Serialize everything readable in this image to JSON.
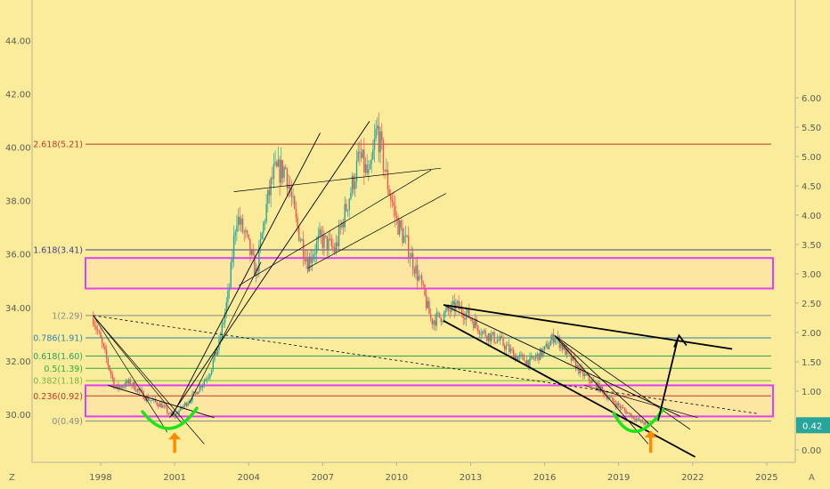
{
  "chart_data": {
    "type": "line",
    "title": "",
    "x_ticks": [
      "1998",
      "2001",
      "2004",
      "2007",
      "2010",
      "2013",
      "2016",
      "2019",
      "2022",
      "2025"
    ],
    "left_axis": {
      "ticks": [
        "30.00",
        "32.00",
        "34.00",
        "36.00",
        "38.00",
        "40.00",
        "42.00",
        "44.00"
      ]
    },
    "right_axis": {
      "ticks": [
        "0.00",
        "0.50",
        "1.00",
        "1.50",
        "2.00",
        "2.50",
        "3.00",
        "3.50",
        "4.00",
        "4.50",
        "5.00",
        "5.50",
        "6.00"
      ],
      "last_price": "0.42"
    },
    "fib_levels": [
      {
        "label": "2.618(5.21)",
        "value": 5.21,
        "color": "#c0392b"
      },
      {
        "label": "1.618(3.41)",
        "value": 3.41,
        "color": "#3b3f8f"
      },
      {
        "label": "1(2.29)",
        "value": 2.29,
        "color": "#8a8a8a"
      },
      {
        "label": "0.786(1.91)",
        "value": 1.91,
        "color": "#2a86b5"
      },
      {
        "label": "0.618(1.60)",
        "value": 1.6,
        "color": "#25a15a"
      },
      {
        "label": "0.5(1.39)",
        "value": 1.39,
        "color": "#27b02f"
      },
      {
        "label": "0.382(1.18)",
        "value": 1.18,
        "color": "#7cb342"
      },
      {
        "label": "0.236(0.92)",
        "value": 0.92,
        "color": "#c0392b"
      },
      {
        "label": "0(0.49)",
        "value": 0.49,
        "color": "#8a8a8a"
      }
    ],
    "price_series": [
      {
        "x": 1997.7,
        "y": 2.25
      },
      {
        "x": 1998.2,
        "y": 1.6
      },
      {
        "x": 1998.6,
        "y": 1.05
      },
      {
        "x": 1999.2,
        "y": 1.15
      },
      {
        "x": 1999.8,
        "y": 0.9
      },
      {
        "x": 2000.5,
        "y": 0.75
      },
      {
        "x": 2000.9,
        "y": 0.55
      },
      {
        "x": 2001.3,
        "y": 0.72
      },
      {
        "x": 2001.8,
        "y": 0.95
      },
      {
        "x": 2002.4,
        "y": 1.3
      },
      {
        "x": 2002.8,
        "y": 1.8
      },
      {
        "x": 2003.2,
        "y": 2.7
      },
      {
        "x": 2003.5,
        "y": 4.0
      },
      {
        "x": 2003.9,
        "y": 3.6
      },
      {
        "x": 2004.3,
        "y": 3.0
      },
      {
        "x": 2004.7,
        "y": 4.1
      },
      {
        "x": 2005.0,
        "y": 4.7
      },
      {
        "x": 2005.5,
        "y": 4.8
      },
      {
        "x": 2005.9,
        "y": 3.9
      },
      {
        "x": 2006.4,
        "y": 3.2
      },
      {
        "x": 2006.9,
        "y": 3.6
      },
      {
        "x": 2007.5,
        "y": 3.4
      },
      {
        "x": 2008.0,
        "y": 4.2
      },
      {
        "x": 2008.5,
        "y": 5.0
      },
      {
        "x": 2008.9,
        "y": 4.6
      },
      {
        "x": 2009.2,
        "y": 5.5
      },
      {
        "x": 2009.6,
        "y": 4.6
      },
      {
        "x": 2010.0,
        "y": 3.9
      },
      {
        "x": 2010.5,
        "y": 3.4
      },
      {
        "x": 2011.0,
        "y": 2.8
      },
      {
        "x": 2011.4,
        "y": 2.2
      },
      {
        "x": 2011.9,
        "y": 2.3
      },
      {
        "x": 2012.4,
        "y": 2.45
      },
      {
        "x": 2012.9,
        "y": 2.3
      },
      {
        "x": 2013.5,
        "y": 2.0
      },
      {
        "x": 2014.2,
        "y": 1.85
      },
      {
        "x": 2014.8,
        "y": 1.6
      },
      {
        "x": 2015.4,
        "y": 1.5
      },
      {
        "x": 2016.0,
        "y": 1.7
      },
      {
        "x": 2016.4,
        "y": 1.95
      },
      {
        "x": 2016.9,
        "y": 1.65
      },
      {
        "x": 2017.5,
        "y": 1.3
      },
      {
        "x": 2018.1,
        "y": 1.1
      },
      {
        "x": 2018.7,
        "y": 0.85
      },
      {
        "x": 2019.3,
        "y": 0.65
      },
      {
        "x": 2019.8,
        "y": 0.5
      },
      {
        "x": 2020.2,
        "y": 0.42
      }
    ],
    "zones": [
      {
        "from": 2.75,
        "to": 3.27
      },
      {
        "from": 0.57,
        "to": 1.1
      }
    ],
    "colors": {
      "background": "#fbec9b",
      "candle_up": "#26a69a",
      "candle_down": "#ef5350",
      "zone_border": "#e040fb",
      "zone_fill": "#ffe0a8",
      "smile": "#19e619",
      "up_arrow": "#ff8c00",
      "trend": "#000000",
      "price_tag": "#26a69a"
    },
    "corner_labels": {
      "left": "Z",
      "right": "A"
    }
  }
}
